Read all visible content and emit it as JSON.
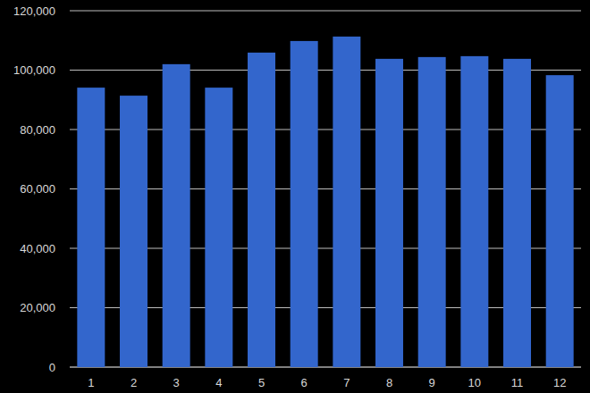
{
  "chart_data": {
    "type": "bar",
    "categories": [
      "1",
      "2",
      "3",
      "4",
      "5",
      "6",
      "7",
      "8",
      "9",
      "10",
      "11",
      "12"
    ],
    "values": [
      94100,
      91400,
      102000,
      94100,
      105900,
      109800,
      111300,
      103800,
      104400,
      104700,
      103800,
      98300
    ],
    "color": "#3366cc",
    "ylim": [
      0,
      120000
    ],
    "yticks": [
      0,
      {
        "value": 20000,
        "label": "20,000"
      },
      {
        "value": 40000,
        "label": "40,000"
      },
      {
        "value": 60000,
        "label": "60,000"
      },
      {
        "value": 80000,
        "label": "80,000"
      },
      {
        "value": 100000,
        "label": "100,000"
      },
      {
        "value": 120000,
        "label": "120,000"
      }
    ],
    "grid": true
  }
}
